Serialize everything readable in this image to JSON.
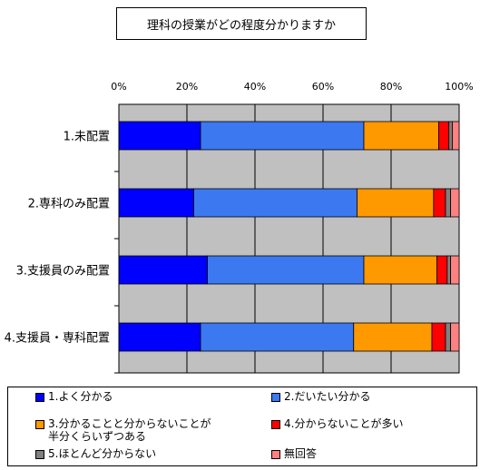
{
  "chart_data": {
    "type": "bar",
    "stacked": "percent",
    "orientation": "horizontal",
    "title": "理科の授業がどの程度分かりますか",
    "categories": [
      "1.未配置",
      "2.専科のみ配置",
      "3.支援員のみ配置",
      "4.支援員・専科配置"
    ],
    "x_ticks": [
      "0%",
      "20%",
      "40%",
      "60%",
      "80%",
      "100%"
    ],
    "xlim": [
      0,
      100
    ],
    "grid": true,
    "legend_position": "bottom",
    "series": [
      {
        "name": "1.よく分かる",
        "color": "#0000ff",
        "values": [
          24,
          22,
          26,
          24
        ]
      },
      {
        "name": "2.だいたい分かる",
        "color": "#3c78f0",
        "values": [
          48,
          48,
          46,
          45
        ]
      },
      {
        "name": "3.分かることと分からないことが\n半分くらいずつある",
        "color": "#ff9900",
        "values": [
          22,
          22.5,
          21.5,
          23
        ]
      },
      {
        "name": "4.分からないことが多い",
        "color": "#ff0000",
        "values": [
          3,
          3.5,
          3,
          4
        ]
      },
      {
        "name": "5.ほとんど分からない",
        "color": "#808080",
        "values": [
          1,
          1.5,
          1,
          1.5
        ]
      },
      {
        "name": "無回答",
        "color": "#ff8080",
        "values": [
          2,
          2.5,
          2.5,
          2.5
        ]
      }
    ],
    "plot_background": "#c0c0c0"
  }
}
